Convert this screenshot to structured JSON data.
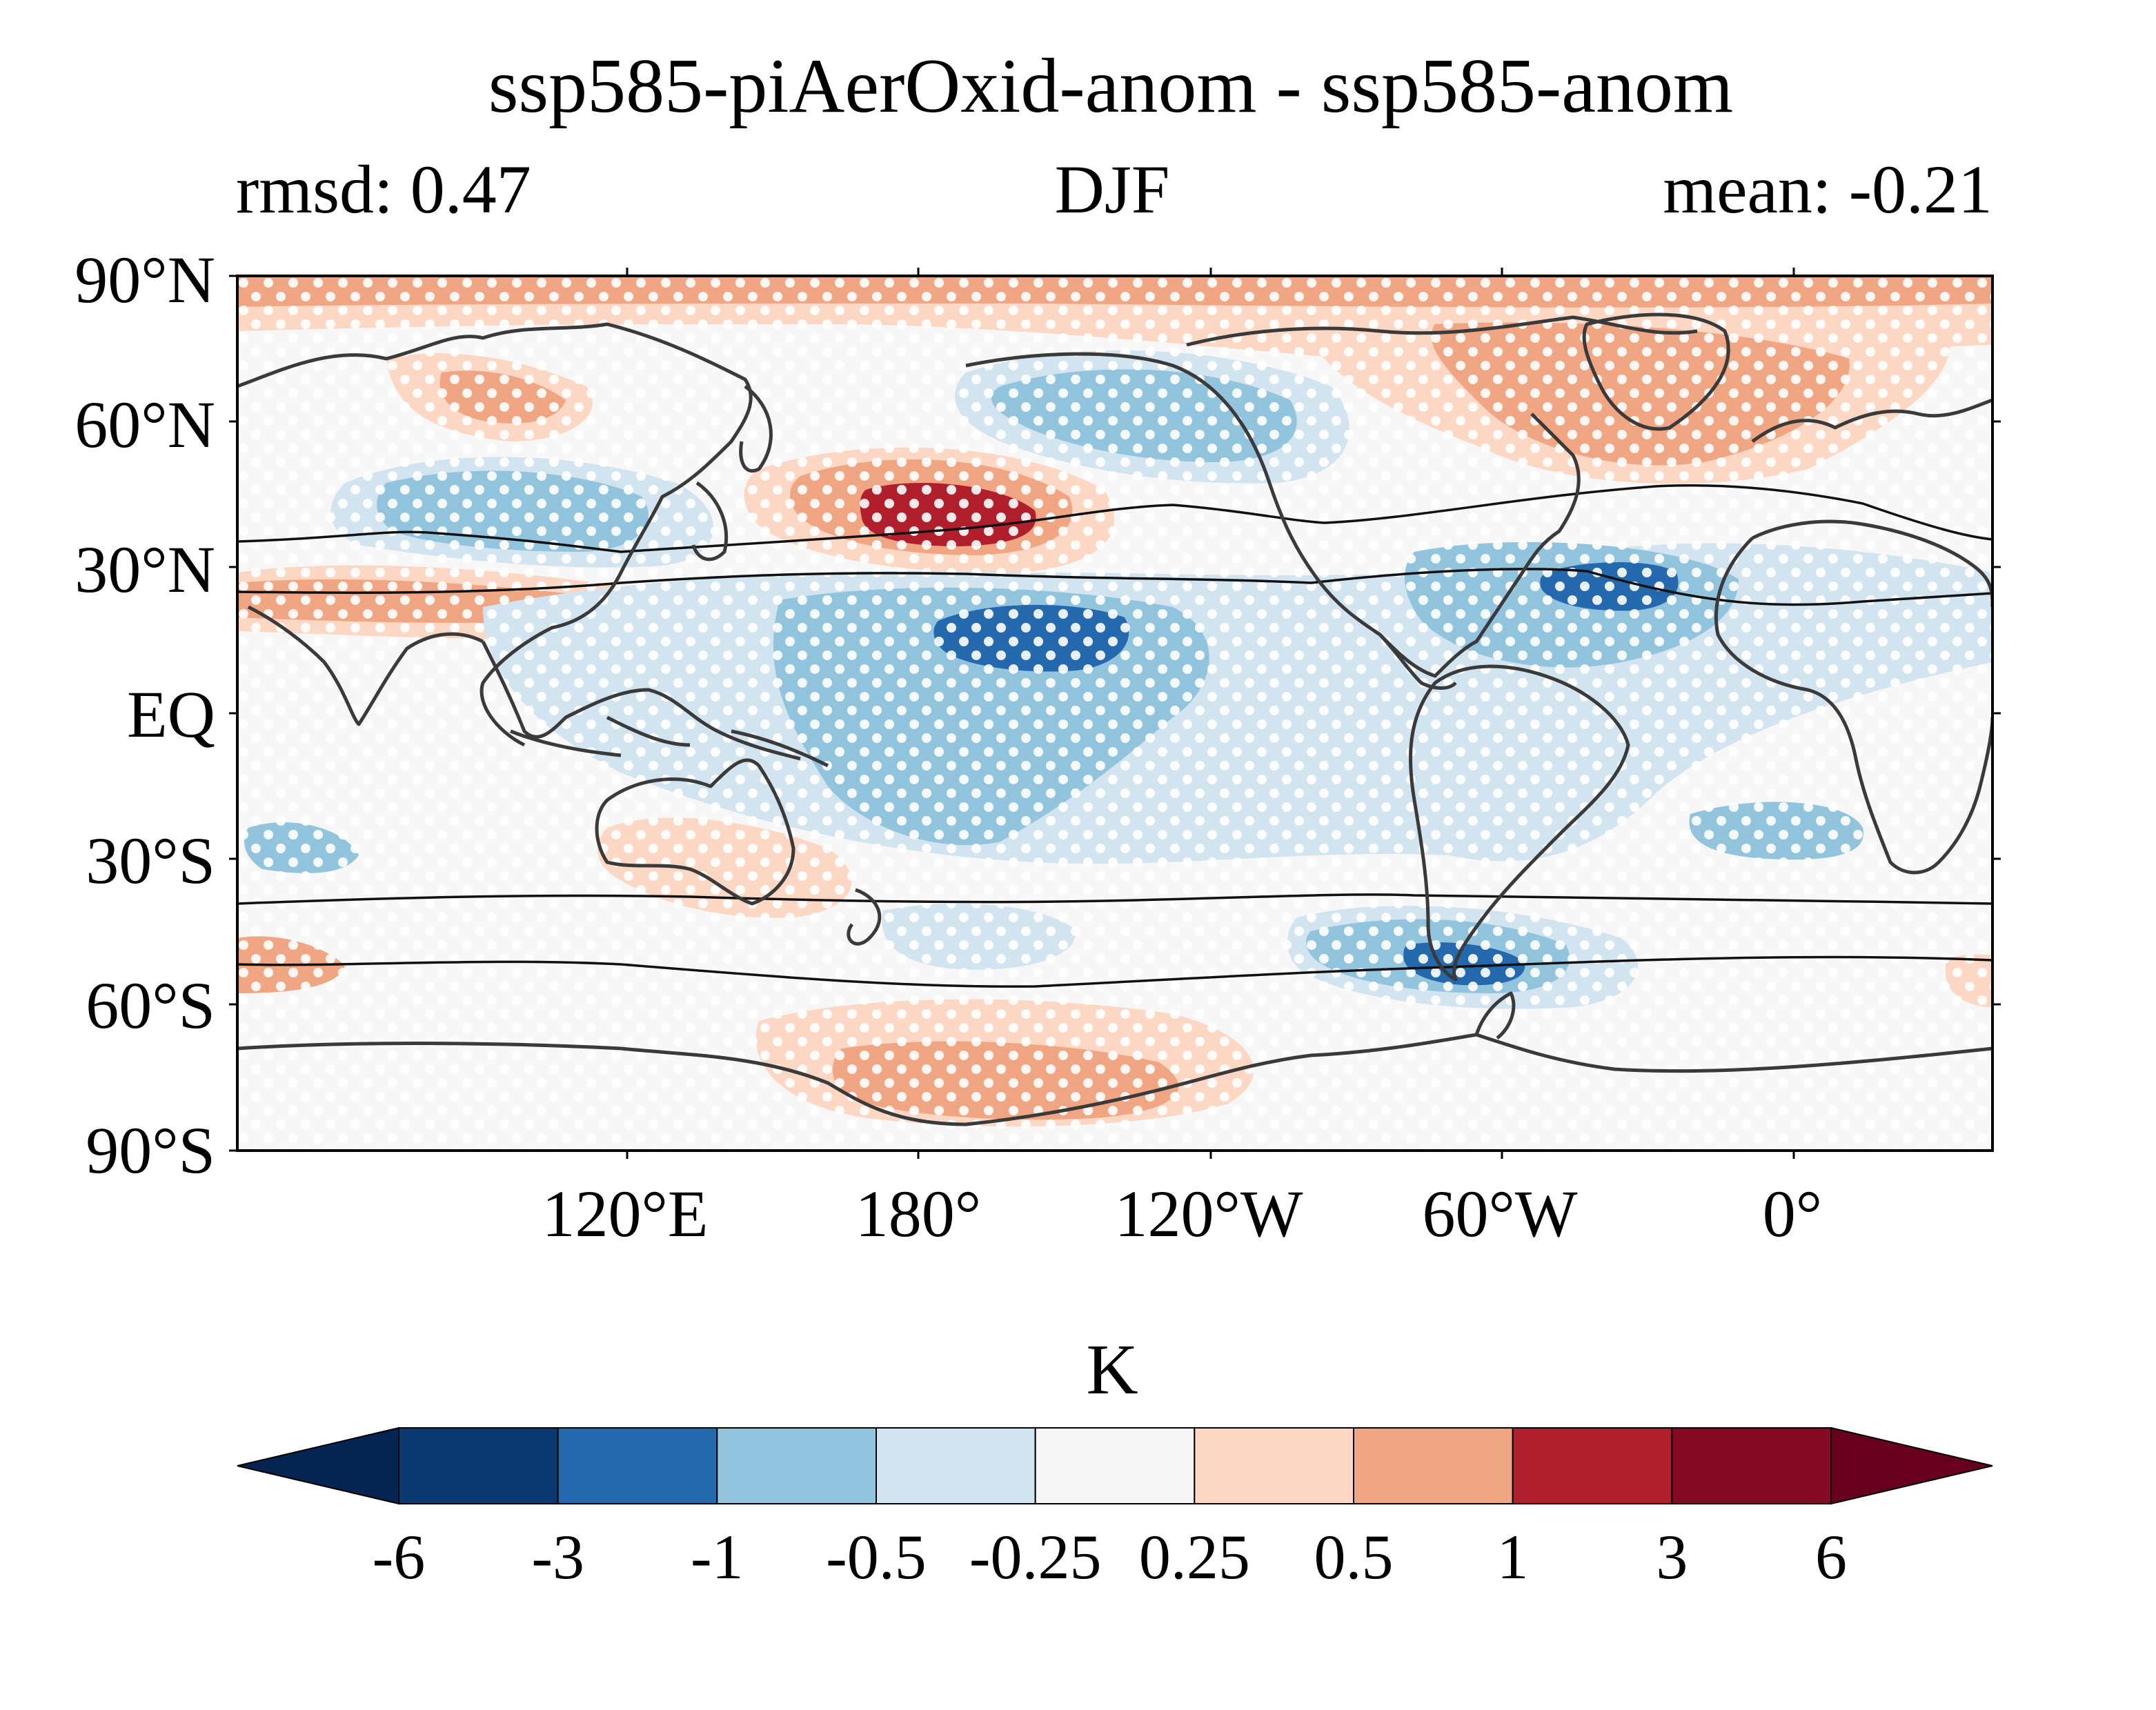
{
  "title": "ssp585-piAerOxid-anom - ssp585-anom",
  "left_label": "rmsd: 0.47",
  "center_label": "DJF",
  "right_label": "mean: -0.21",
  "colorbar": {
    "label": "K",
    "ticks": [
      "-6",
      "-3",
      "-1",
      "-0.5",
      "-0.25",
      "0.25",
      "0.5",
      "1",
      "3",
      "6"
    ],
    "colors": [
      "#052452",
      "#0b3a70",
      "#2468ae",
      "#93c4de",
      "#d2e4ef",
      "#f7f7f7",
      "#fcd8c4",
      "#f0a583",
      "#b11f2c",
      "#850a24",
      "#67001f"
    ],
    "extend": "both"
  },
  "map": {
    "projection": "PlateCarree",
    "lon_extent": [
      60,
      420
    ],
    "lat_extent": [
      -90,
      90
    ],
    "yticks": [
      "90°N",
      "60°N",
      "30°N",
      "EQ",
      "30°S",
      "60°S",
      "90°S"
    ],
    "xticks": [
      "120°E",
      "180°",
      "120°W",
      "60°W",
      "0°"
    ],
    "hatching": "white dots mark significance",
    "contour_lines": "jet position, two lines per hemisphere, black"
  }
}
